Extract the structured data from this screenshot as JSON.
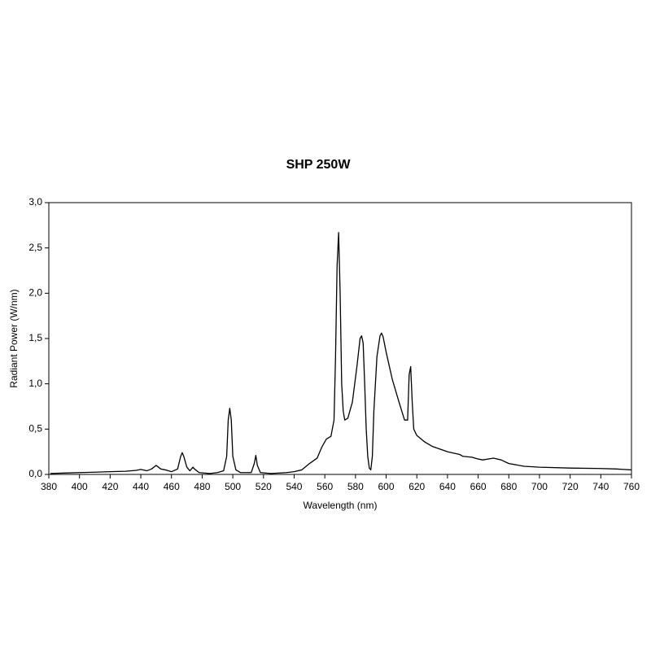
{
  "chart_data": {
    "type": "line",
    "title": "SHP 250W",
    "xlabel": "Wavelength (nm)",
    "ylabel": "Radiant Power (W/nm)",
    "x": [
      381,
      390,
      400,
      410,
      420,
      430,
      437,
      440,
      444,
      447,
      450,
      453,
      456,
      460,
      464,
      466,
      467,
      468,
      470,
      472,
      474,
      475,
      478,
      485,
      490,
      494,
      496,
      497,
      498,
      499,
      500,
      502,
      505,
      512,
      514,
      515,
      516,
      518,
      525,
      535,
      540,
      545,
      550,
      555,
      558,
      561,
      564,
      566,
      567,
      568,
      569,
      570,
      571,
      572,
      573,
      575,
      578,
      581,
      583,
      584,
      585,
      586,
      587,
      588,
      589,
      590,
      591,
      592,
      594,
      596,
      597,
      598,
      600,
      604,
      608,
      612,
      614,
      615,
      616,
      617,
      618,
      620,
      625,
      630,
      640,
      648,
      650,
      656,
      660,
      663,
      670,
      675,
      680,
      690,
      700,
      720,
      740,
      750,
      755,
      760
    ],
    "series": [
      {
        "name": "SHP 250W",
        "color": "#000000",
        "values": [
          0.01,
          0.015,
          0.02,
          0.025,
          0.03,
          0.035,
          0.045,
          0.055,
          0.04,
          0.06,
          0.1,
          0.06,
          0.05,
          0.03,
          0.06,
          0.2,
          0.24,
          0.2,
          0.08,
          0.04,
          0.08,
          0.06,
          0.02,
          0.01,
          0.02,
          0.04,
          0.2,
          0.6,
          0.73,
          0.6,
          0.2,
          0.05,
          0.02,
          0.02,
          0.12,
          0.21,
          0.1,
          0.02,
          0.01,
          0.02,
          0.03,
          0.05,
          0.12,
          0.18,
          0.3,
          0.39,
          0.42,
          0.6,
          1.3,
          2.3,
          2.67,
          2.0,
          1.0,
          0.7,
          0.6,
          0.62,
          0.8,
          1.2,
          1.5,
          1.53,
          1.45,
          1.0,
          0.5,
          0.2,
          0.07,
          0.05,
          0.2,
          0.7,
          1.3,
          1.53,
          1.56,
          1.52,
          1.35,
          1.05,
          0.82,
          0.6,
          0.6,
          1.1,
          1.19,
          0.8,
          0.5,
          0.43,
          0.36,
          0.31,
          0.25,
          0.22,
          0.2,
          0.19,
          0.17,
          0.16,
          0.18,
          0.16,
          0.12,
          0.09,
          0.08,
          0.07,
          0.065,
          0.06,
          0.055,
          0.05
        ]
      }
    ],
    "xlim": [
      380,
      760
    ],
    "xticks": [
      380,
      400,
      420,
      440,
      460,
      480,
      500,
      520,
      540,
      560,
      580,
      600,
      620,
      640,
      660,
      680,
      700,
      720,
      740,
      760
    ],
    "ylim": [
      0,
      3
    ],
    "yticks": [
      {
        "value": 0,
        "label": "0,0"
      },
      {
        "value": 0.5,
        "label": "0,5"
      },
      {
        "value": 1,
        "label": "1,0"
      },
      {
        "value": 1.5,
        "label": "1,5"
      },
      {
        "value": 2,
        "label": "2,0"
      },
      {
        "value": 2.5,
        "label": "2,5"
      },
      {
        "value": 3,
        "label": "3,0"
      }
    ],
    "grid": false
  }
}
